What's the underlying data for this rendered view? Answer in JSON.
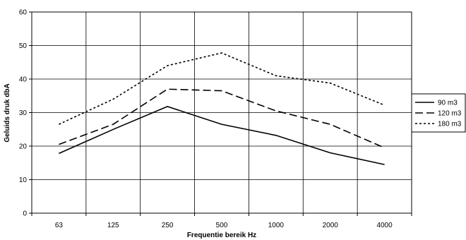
{
  "chart_data": {
    "type": "line",
    "categories": [
      "63",
      "125",
      "250",
      "500",
      "1000",
      "2000",
      "4000"
    ],
    "series": [
      {
        "name": "90 m3",
        "values": [
          17.8,
          25.0,
          31.8,
          26.5,
          23.2,
          18.0,
          14.5
        ],
        "dash": "solid"
      },
      {
        "name": "120 m3",
        "values": [
          20.5,
          26.5,
          37.0,
          36.5,
          30.5,
          26.5,
          19.5
        ],
        "dash": "long-dash"
      },
      {
        "name": "180 m3",
        "values": [
          26.5,
          34.0,
          44.0,
          47.8,
          41.0,
          38.8,
          32.2
        ],
        "dash": "short-dash"
      }
    ],
    "title": "",
    "xlabel": "Frequentie bereik Hz",
    "ylabel": "Geluids druk dbA",
    "ylim": [
      0,
      60
    ],
    "yticks": [
      "0",
      "10",
      "20",
      "30",
      "40",
      "50",
      "60"
    ],
    "grid": true,
    "legend_position": "right",
    "line_color": "#000000"
  }
}
